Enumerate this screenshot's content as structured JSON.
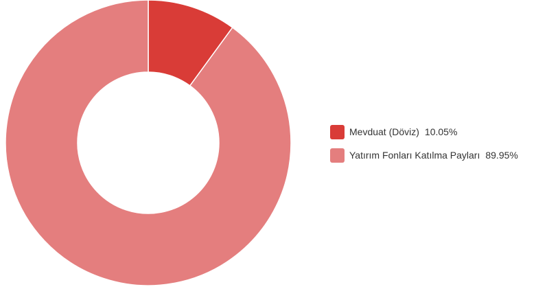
{
  "chart_data": {
    "type": "pie",
    "donut": true,
    "title": "",
    "legend_position": "right",
    "slices": [
      {
        "label": "Mevduat (Döviz)",
        "value": 10.05,
        "value_label": "10.05%",
        "color": "#D93C37"
      },
      {
        "label": "Yatırım Fonları Katılma Payları",
        "value": 89.95,
        "value_label": "89.95%",
        "color": "#E47E7E"
      }
    ]
  }
}
